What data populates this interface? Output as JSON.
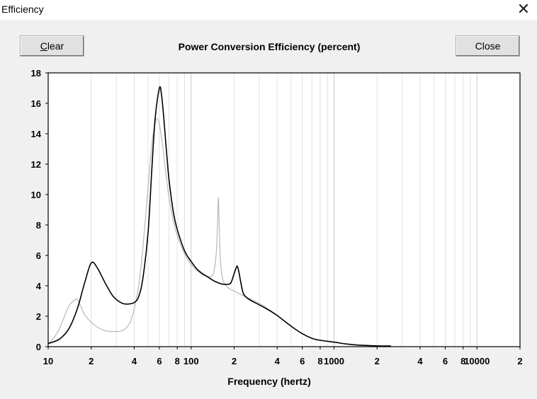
{
  "window": {
    "title": "Efficiency",
    "close_glyph": "✕"
  },
  "toolbar": {
    "clear_label": "Clear",
    "clear_mnemonic": "C",
    "clear_rest": "lear",
    "close_label": "Close"
  },
  "chart_data": {
    "type": "line",
    "title": "Power Conversion Efficiency (percent)",
    "xlabel": "Frequency (hertz)",
    "ylabel": "",
    "xscale": "log",
    "xlim": [
      10,
      20000
    ],
    "ylim": [
      0,
      18
    ],
    "grid": true,
    "yticks": [
      "0",
      "2",
      "4",
      "6",
      "8",
      "10",
      "12",
      "14",
      "16",
      "18"
    ],
    "xticks": [
      {
        "v": 10,
        "t": "10"
      },
      {
        "v": 20,
        "t": "2"
      },
      {
        "v": 40,
        "t": "4"
      },
      {
        "v": 60,
        "t": "6"
      },
      {
        "v": 80,
        "t": "8"
      },
      {
        "v": 100,
        "t": "100"
      },
      {
        "v": 200,
        "t": "2"
      },
      {
        "v": 400,
        "t": "4"
      },
      {
        "v": 600,
        "t": "6"
      },
      {
        "v": 800,
        "t": "8"
      },
      {
        "v": 1000,
        "t": "1000"
      },
      {
        "v": 2000,
        "t": "2"
      },
      {
        "v": 4000,
        "t": "4"
      },
      {
        "v": 6000,
        "t": "6"
      },
      {
        "v": 8000,
        "t": "8"
      },
      {
        "v": 10000,
        "t": "10000"
      },
      {
        "v": 20000,
        "t": "2"
      }
    ],
    "series": [
      {
        "color": "#000000",
        "x": [
          10,
          12,
          14,
          16,
          18,
          20,
          22,
          25,
          28,
          30,
          33,
          36,
          40,
          43,
          46,
          50,
          53,
          56,
          60,
          62,
          64,
          66,
          68,
          70,
          75,
          80,
          90,
          100,
          110,
          120,
          130,
          140,
          150,
          160,
          170,
          180,
          190,
          200,
          205,
          210,
          215,
          220,
          230,
          240,
          260,
          300,
          350,
          400,
          500,
          600,
          700,
          800,
          1000,
          1200,
          1500,
          2000,
          2500
        ],
        "y": [
          0.2,
          0.5,
          1.2,
          2.5,
          4.2,
          5.5,
          5.2,
          4.2,
          3.4,
          3.1,
          2.85,
          2.8,
          2.9,
          3.3,
          4.5,
          7.5,
          11.5,
          15,
          17,
          16.6,
          15.3,
          13.8,
          12.3,
          11,
          8.9,
          7.7,
          6.3,
          5.6,
          5.1,
          4.8,
          4.6,
          4.4,
          4.25,
          4.15,
          4.1,
          4.1,
          4.2,
          4.8,
          5.1,
          5.3,
          5.0,
          4.5,
          3.6,
          3.3,
          3.05,
          2.75,
          2.4,
          2.05,
          1.35,
          0.85,
          0.55,
          0.42,
          0.3,
          0.18,
          0.1,
          0.05,
          0.04
        ]
      },
      {
        "color": "#b8b8b8",
        "x": [
          10,
          11,
          12,
          13,
          14,
          15,
          16,
          17,
          18,
          20,
          22,
          25,
          28,
          30,
          33,
          36,
          38,
          40,
          43,
          46,
          50,
          53,
          56,
          58,
          60,
          62,
          64,
          66,
          68,
          70,
          75,
          80,
          90,
          100,
          110,
          120,
          130,
          140,
          145,
          150,
          153,
          155,
          157,
          160,
          165,
          170,
          175,
          180,
          190,
          200,
          220,
          250,
          300,
          350,
          400,
          500,
          600,
          700,
          800,
          1000,
          1200,
          1500,
          2000,
          2500
        ],
        "y": [
          0.2,
          0.6,
          1.2,
          2.0,
          2.7,
          3.0,
          3.1,
          2.6,
          2.1,
          1.6,
          1.3,
          1.05,
          1.0,
          1.0,
          1.05,
          1.35,
          1.75,
          2.5,
          4.0,
          6.5,
          10.5,
          13.2,
          14.7,
          15,
          14.6,
          13.8,
          12.8,
          11.7,
          10.7,
          9.8,
          8.3,
          7.3,
          6.1,
          5.4,
          5.0,
          4.75,
          4.6,
          4.65,
          5.0,
          6.2,
          8.0,
          9.8,
          8.2,
          5.8,
          4.6,
          4.2,
          4.0,
          3.9,
          3.75,
          3.65,
          3.45,
          3.2,
          2.85,
          2.45,
          2.05,
          1.35,
          0.85,
          0.55,
          0.42,
          0.3,
          0.18,
          0.1,
          0.05,
          0.04
        ]
      }
    ]
  }
}
